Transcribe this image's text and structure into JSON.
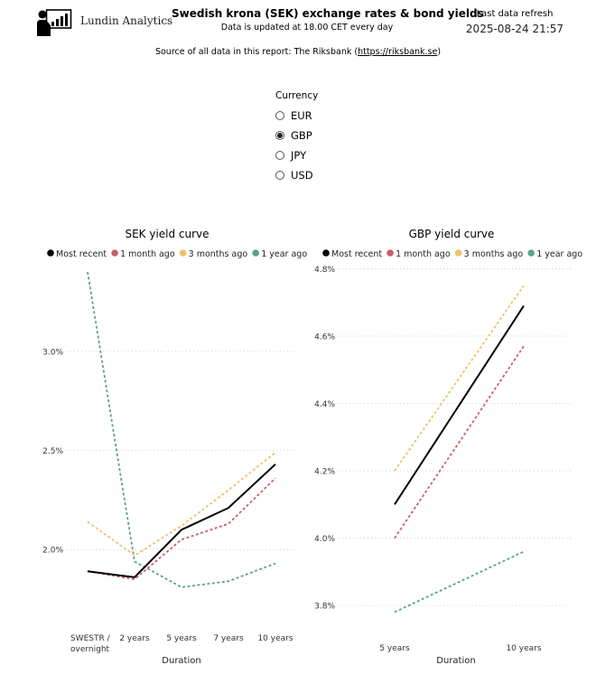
{
  "header": {
    "brand": "Lundin Analytics",
    "title": "Swedish krona (SEK) exchange rates & bond yields",
    "subtitle": "Data is updated at 18.00 CET every day",
    "refresh_label": "Last data refresh",
    "refresh_value": "2025-08-24 21:57",
    "source_prefix": "Source of all data in this report: The Riksbank (",
    "source_link": "https://riksbank.se",
    "source_suffix": ")"
  },
  "icons": {
    "logo": "presenter-chart-icon"
  },
  "colors": {
    "most_recent": "#000000",
    "month_ago": "#c8606a",
    "three_months_ago": "#efc168",
    "year_ago": "#5aa385",
    "gridline": "#c8c8c8"
  },
  "currency_slicer": {
    "label": "Currency",
    "options": [
      "EUR",
      "GBP",
      "JPY",
      "USD"
    ],
    "selected": "GBP"
  },
  "chart_data": [
    {
      "type": "line",
      "title": "SEK yield curve",
      "xlabel": "Duration",
      "ylabel": "",
      "categories": [
        "SWESTR / overnight",
        "2 years",
        "5 years",
        "7 years",
        "10 years"
      ],
      "ylim": [
        1.65,
        3.45
      ],
      "yticks": [
        2.0,
        2.5,
        3.0
      ],
      "ytick_labels": [
        "2.0%",
        "2.5%",
        "3.0%"
      ],
      "grid": true,
      "legend_position": "top",
      "series": [
        {
          "name": "Most recent",
          "values": [
            1.89,
            1.86,
            2.1,
            2.21,
            2.43
          ],
          "style": "solid"
        },
        {
          "name": "1 month ago",
          "values": [
            1.89,
            1.85,
            2.05,
            2.13,
            2.36
          ],
          "style": "dashed"
        },
        {
          "name": "3 months ago",
          "values": [
            2.14,
            1.97,
            2.12,
            2.3,
            2.49
          ],
          "style": "dashed"
        },
        {
          "name": "1 year ago",
          "values": [
            3.4,
            1.94,
            1.81,
            1.84,
            1.93
          ],
          "style": "dashed"
        }
      ]
    },
    {
      "type": "line",
      "title": "GBP yield curve",
      "xlabel": "Duration",
      "ylabel": "",
      "categories": [
        "5 years",
        "10 years"
      ],
      "ylim": [
        3.76,
        4.82
      ],
      "yticks": [
        3.8,
        4.0,
        4.2,
        4.4,
        4.6,
        4.8
      ],
      "ytick_labels": [
        "3.8%",
        "4.0%",
        "4.2%",
        "4.4%",
        "4.6%",
        "4.8%"
      ],
      "grid": true,
      "legend_position": "top",
      "series": [
        {
          "name": "Most recent",
          "values": [
            4.1,
            4.69
          ],
          "style": "solid"
        },
        {
          "name": "1 month ago",
          "values": [
            4.0,
            4.57
          ],
          "style": "dashed"
        },
        {
          "name": "3 months ago",
          "values": [
            4.2,
            4.75
          ],
          "style": "dashed"
        },
        {
          "name": "1 year ago",
          "values": [
            3.78,
            3.96
          ],
          "style": "dashed"
        }
      ]
    }
  ]
}
